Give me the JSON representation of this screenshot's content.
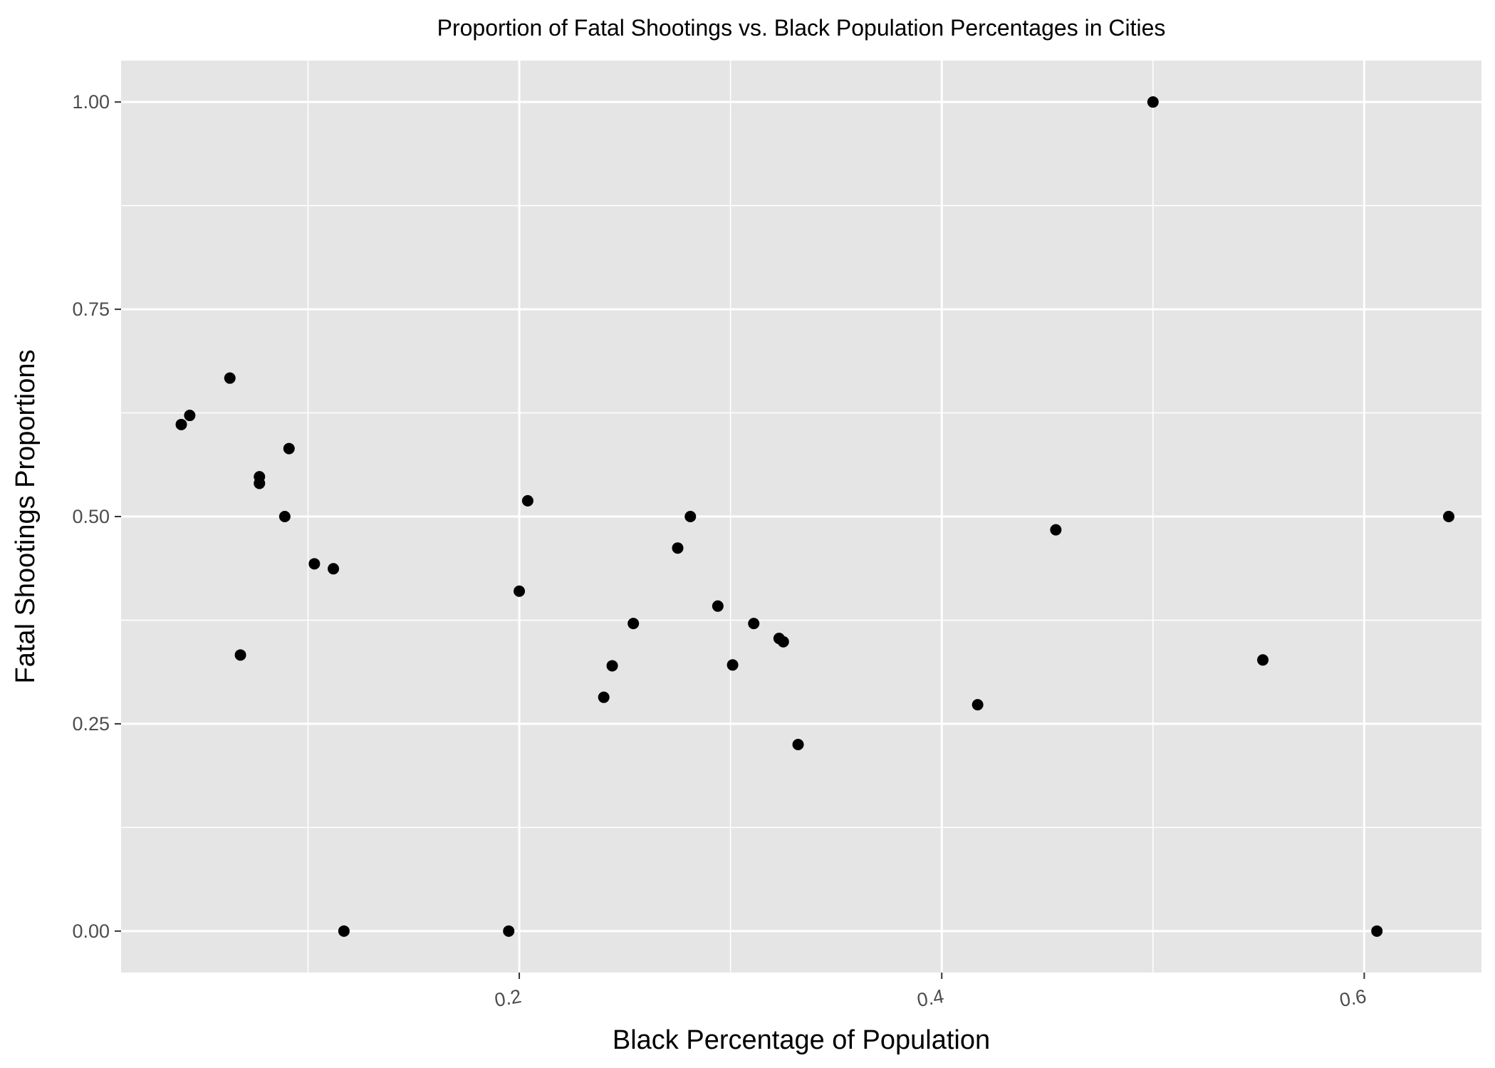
{
  "chart_data": {
    "type": "scatter",
    "title": "Proportion of Fatal Shootings vs. Black Population Percentages in Cities",
    "xlabel": "Black Percentage of Population",
    "ylabel": "Fatal Shootings Proportions",
    "xlim": [
      0.0115,
      0.6555
    ],
    "ylim": [
      -0.05,
      1.05
    ],
    "x_ticks": [
      {
        "value": 0.2,
        "label": "0.2"
      },
      {
        "value": 0.4,
        "label": "0.4"
      },
      {
        "value": 0.6,
        "label": "0.6"
      }
    ],
    "x_minor_ticks": [
      0.1,
      0.3,
      0.5
    ],
    "y_ticks": [
      {
        "value": 0.0,
        "label": "0.00"
      },
      {
        "value": 0.25,
        "label": "0.25"
      },
      {
        "value": 0.5,
        "label": "0.50"
      },
      {
        "value": 0.75,
        "label": "0.75"
      },
      {
        "value": 1.0,
        "label": "1.00"
      }
    ],
    "y_minor_ticks": [
      0.125,
      0.375,
      0.625,
      0.875
    ],
    "x_tick_rotation": -10,
    "grid": true,
    "colors": {
      "panel_background": "#e5e5e5",
      "grid_line": "#ffffff",
      "point": "#000000",
      "tick_label": "#4d4d4d",
      "tick_mark": "#333333"
    },
    "points": [
      {
        "x": 0.04,
        "y": 0.611
      },
      {
        "x": 0.044,
        "y": 0.622
      },
      {
        "x": 0.063,
        "y": 0.667
      },
      {
        "x": 0.068,
        "y": 0.333
      },
      {
        "x": 0.077,
        "y": 0.548
      },
      {
        "x": 0.077,
        "y": 0.54
      },
      {
        "x": 0.089,
        "y": 0.5
      },
      {
        "x": 0.091,
        "y": 0.582
      },
      {
        "x": 0.103,
        "y": 0.443
      },
      {
        "x": 0.112,
        "y": 0.437
      },
      {
        "x": 0.117,
        "y": 0.0
      },
      {
        "x": 0.195,
        "y": 0.0
      },
      {
        "x": 0.2,
        "y": 0.41
      },
      {
        "x": 0.204,
        "y": 0.519
      },
      {
        "x": 0.24,
        "y": 0.282
      },
      {
        "x": 0.244,
        "y": 0.32
      },
      {
        "x": 0.254,
        "y": 0.371
      },
      {
        "x": 0.275,
        "y": 0.462
      },
      {
        "x": 0.281,
        "y": 0.5
      },
      {
        "x": 0.294,
        "y": 0.392
      },
      {
        "x": 0.301,
        "y": 0.321
      },
      {
        "x": 0.311,
        "y": 0.371
      },
      {
        "x": 0.323,
        "y": 0.353
      },
      {
        "x": 0.325,
        "y": 0.349
      },
      {
        "x": 0.332,
        "y": 0.225
      },
      {
        "x": 0.417,
        "y": 0.273
      },
      {
        "x": 0.454,
        "y": 0.484
      },
      {
        "x": 0.5,
        "y": 1.0
      },
      {
        "x": 0.552,
        "y": 0.327
      },
      {
        "x": 0.606,
        "y": 0.0
      },
      {
        "x": 0.64,
        "y": 0.5
      }
    ]
  }
}
